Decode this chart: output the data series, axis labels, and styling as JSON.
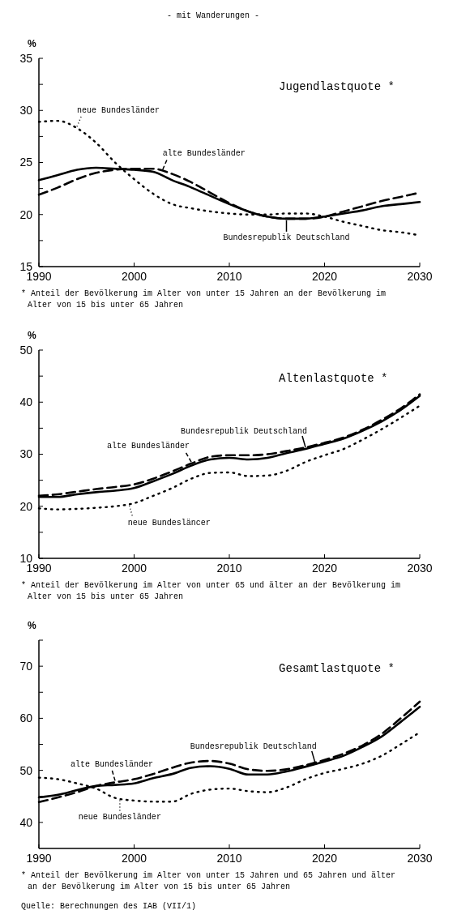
{
  "chart_data": [
    {
      "type": "line",
      "subtitle": "- mit Wanderungen -",
      "title": "Jugendlastquote *",
      "ylabel": "%",
      "x": [
        1990,
        1992,
        1994,
        1996,
        1998,
        2000,
        2002,
        2004,
        2006,
        2008,
        2010,
        2012,
        2014,
        2016,
        2018,
        2020,
        2022,
        2024,
        2026,
        2028,
        2030
      ],
      "xlim": [
        1990,
        2030
      ],
      "xticks": [
        1990,
        2000,
        2010,
        2020,
        2030
      ],
      "ylim": [
        15,
        35
      ],
      "yticks": [
        15,
        {
          "value": 17.5,
          "label": null
        },
        20,
        {
          "value": 22.5,
          "label": null
        },
        25,
        {
          "value": 27.5,
          "label": null
        },
        30,
        {
          "value": 32.5,
          "label": null
        },
        35
      ],
      "series": [
        {
          "name": "Bundesrepublik Deutschland",
          "color": "#000000",
          "line_style": "solid",
          "values": [
            23.3,
            23.8,
            24.3,
            24.5,
            24.4,
            24.3,
            24.1,
            23.3,
            22.6,
            21.8,
            21.0,
            20.3,
            19.8,
            19.6,
            19.6,
            19.8,
            20.1,
            20.4,
            20.8,
            21.0,
            21.2
          ]
        },
        {
          "name": "alte Bundesländer",
          "color": "#000000",
          "line_style": "dashed",
          "values": [
            21.9,
            22.6,
            23.4,
            24.0,
            24.3,
            24.4,
            24.4,
            23.9,
            23.1,
            22.1,
            21.1,
            20.3,
            19.8,
            19.6,
            19.6,
            19.8,
            20.3,
            20.8,
            21.3,
            21.7,
            22.1
          ]
        },
        {
          "name": "neue Bundesländer",
          "color": "#000000",
          "line_style": "dotted",
          "values": [
            28.9,
            29.0,
            28.3,
            26.9,
            25.0,
            23.4,
            22.0,
            21.0,
            20.6,
            20.3,
            20.1,
            20.0,
            20.0,
            20.1,
            20.1,
            19.8,
            19.3,
            18.9,
            18.5,
            18.3,
            18.0
          ]
        }
      ],
      "annotations": [
        "* Anteil der Bevölkerung im Alter von unter 15 Jahren an der Bevölkerung im Alter von 15 bis unter 65 Jahren"
      ]
    },
    {
      "type": "line",
      "title": "Altenlastquote *",
      "ylabel": "%",
      "x": [
        1990,
        1992,
        1994,
        1996,
        1998,
        2000,
        2002,
        2004,
        2006,
        2008,
        2010,
        2012,
        2014,
        2016,
        2018,
        2020,
        2022,
        2024,
        2026,
        2028,
        2030
      ],
      "xlim": [
        1990,
        2030
      ],
      "xticks": [
        1990,
        2000,
        2010,
        2020,
        2030
      ],
      "ylim": [
        10,
        50
      ],
      "yticks": [
        10,
        {
          "value": 15,
          "label": null
        },
        20,
        {
          "value": 25,
          "label": null
        },
        30,
        {
          "value": 35,
          "label": null
        },
        40,
        {
          "value": 45,
          "label": null
        },
        50
      ],
      "series": [
        {
          "name": "Bundesrepublik Deutschland",
          "color": "#000000",
          "line_style": "solid",
          "values": [
            21.8,
            21.8,
            22.3,
            22.7,
            23.0,
            23.5,
            24.8,
            26.2,
            27.8,
            29.0,
            29.3,
            29.0,
            29.3,
            30.2,
            31.0,
            32.0,
            33.0,
            34.5,
            36.3,
            38.5,
            41.2
          ]
        },
        {
          "name": "alte Bundesländer",
          "color": "#000000",
          "line_style": "dashed",
          "values": [
            22.0,
            22.3,
            22.8,
            23.3,
            23.7,
            24.2,
            25.3,
            26.7,
            28.2,
            29.5,
            29.8,
            29.8,
            30.0,
            30.6,
            31.3,
            32.2,
            33.2,
            34.7,
            36.6,
            38.8,
            41.5
          ]
        },
        {
          "name": "neue Bundesläncer",
          "color": "#000000",
          "line_style": "dotted",
          "values": [
            19.6,
            19.4,
            19.5,
            19.7,
            20.0,
            20.6,
            22.0,
            23.5,
            25.3,
            26.4,
            26.5,
            25.8,
            25.9,
            26.8,
            28.5,
            29.8,
            31.0,
            32.8,
            34.8,
            37.0,
            39.3
          ]
        }
      ],
      "annotations": [
        "* Anteil der Bevölkerung im Alter von unter 65 und älter an der Bevölkerung im Alter von 15 bis unter 65 Jahren"
      ]
    },
    {
      "type": "line",
      "title": "Gesamtlastquote *",
      "ylabel": "%",
      "x": [
        1990,
        1992,
        1994,
        1996,
        1998,
        2000,
        2002,
        2004,
        2006,
        2008,
        2010,
        2012,
        2014,
        2016,
        2018,
        2020,
        2022,
        2024,
        2026,
        2028,
        2030
      ],
      "xlim": [
        1990,
        2030
      ],
      "xticks": [
        1990,
        2000,
        2010,
        2020,
        2030
      ],
      "ylim": [
        35,
        75
      ],
      "yticks": [
        40,
        {
          "value": 45,
          "label": null
        },
        50,
        {
          "value": 55,
          "label": null
        },
        60,
        {
          "value": 65,
          "label": null
        },
        70,
        {
          "value": 75,
          "label": null
        }
      ],
      "series": [
        {
          "name": "Bundesrepublik Deutschland",
          "color": "#000000",
          "line_style": "solid",
          "values": [
            44.8,
            45.3,
            46.2,
            47.0,
            47.2,
            47.5,
            48.5,
            49.3,
            50.5,
            50.8,
            50.3,
            49.2,
            49.2,
            49.8,
            50.7,
            51.7,
            52.8,
            54.5,
            56.5,
            59.3,
            62.2
          ]
        },
        {
          "name": "alte Bundesländer",
          "color": "#000000",
          "line_style": "dashed",
          "values": [
            43.9,
            44.8,
            45.8,
            47.0,
            47.7,
            48.3,
            49.3,
            50.5,
            51.5,
            51.8,
            51.3,
            50.2,
            49.9,
            50.2,
            51.0,
            52.0,
            53.2,
            54.8,
            57.0,
            60.0,
            63.2
          ]
        },
        {
          "name": "neue Bundesländer",
          "color": "#000000",
          "line_style": "dotted",
          "values": [
            48.6,
            48.3,
            47.5,
            46.5,
            44.7,
            44.2,
            44.0,
            44.0,
            45.5,
            46.3,
            46.5,
            46.0,
            45.8,
            46.7,
            48.3,
            49.5,
            50.3,
            51.3,
            52.8,
            55.0,
            57.3
          ]
        }
      ],
      "annotations": [
        "* Anteil der Bevölkerung im Alter von unter 15 Jahren und 65 Jahren und älter an der Bevölkerung im Alter von 15 bis unter 65 Jahren",
        "Quelle: Berechnungen des IAB (VII/1)"
      ]
    }
  ]
}
